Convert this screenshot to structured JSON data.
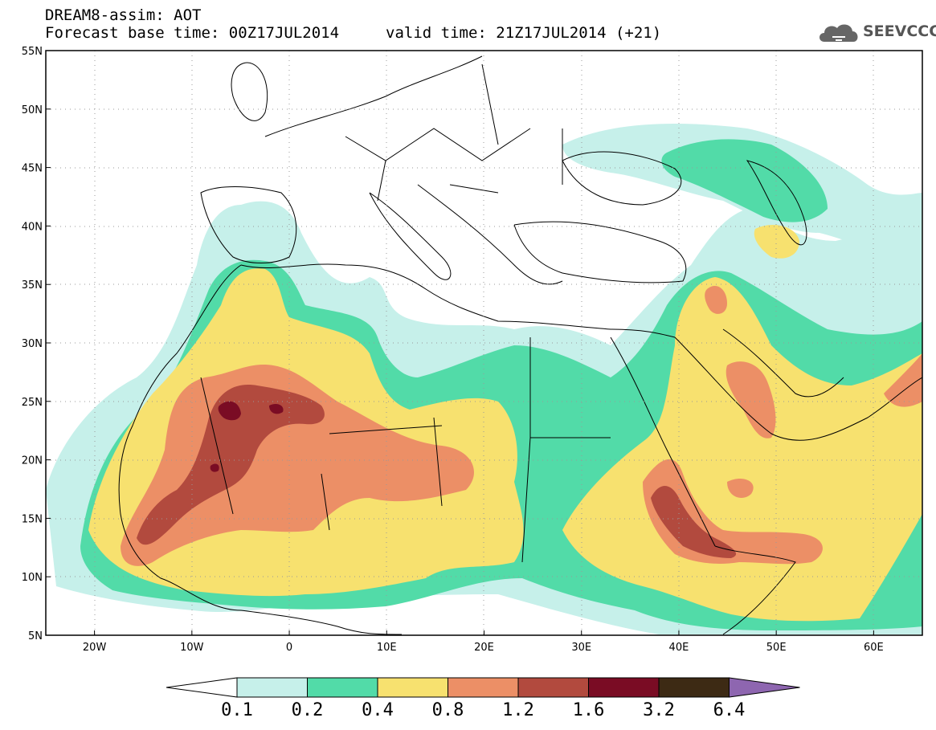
{
  "title": {
    "line1": "DREAM8-assim: AOT",
    "line2": "Forecast base time: 00Z17JUL2014",
    "valid": "valid time: 21Z17JUL2014 (+21)"
  },
  "logo": {
    "text": "SEEVCCC",
    "icon": "cloud-icon"
  },
  "map": {
    "lon_range": [
      -25,
      65
    ],
    "lat_range": [
      5,
      55
    ],
    "lat_ticks": [
      "5N",
      "10N",
      "15N",
      "20N",
      "25N",
      "30N",
      "35N",
      "40N",
      "45N",
      "50N",
      "55N"
    ],
    "lon_ticks": [
      "20W",
      "10W",
      "0",
      "10E",
      "20E",
      "30E",
      "40E",
      "50E",
      "60E"
    ],
    "grid": "dotted"
  },
  "colorbar": {
    "levels": [
      "0.1",
      "0.2",
      "0.4",
      "0.8",
      "1.2",
      "1.6",
      "3.2",
      "6.4"
    ],
    "colors": [
      "#ffffff",
      "#c6f0ea",
      "#52dba8",
      "#f7e16f",
      "#ec8f66",
      "#b24a3e",
      "#7a0c24",
      "#3d2a14",
      "#8e66b0"
    ]
  },
  "chart_data": {
    "type": "heatmap",
    "title": "DREAM8-assim: AOT",
    "variable": "AOT",
    "xlim": [
      -25,
      65
    ],
    "ylim": [
      5,
      55
    ],
    "bins": [
      0.1,
      0.2,
      0.4,
      0.8,
      1.2,
      1.6,
      3.2,
      6.4
    ]
  }
}
